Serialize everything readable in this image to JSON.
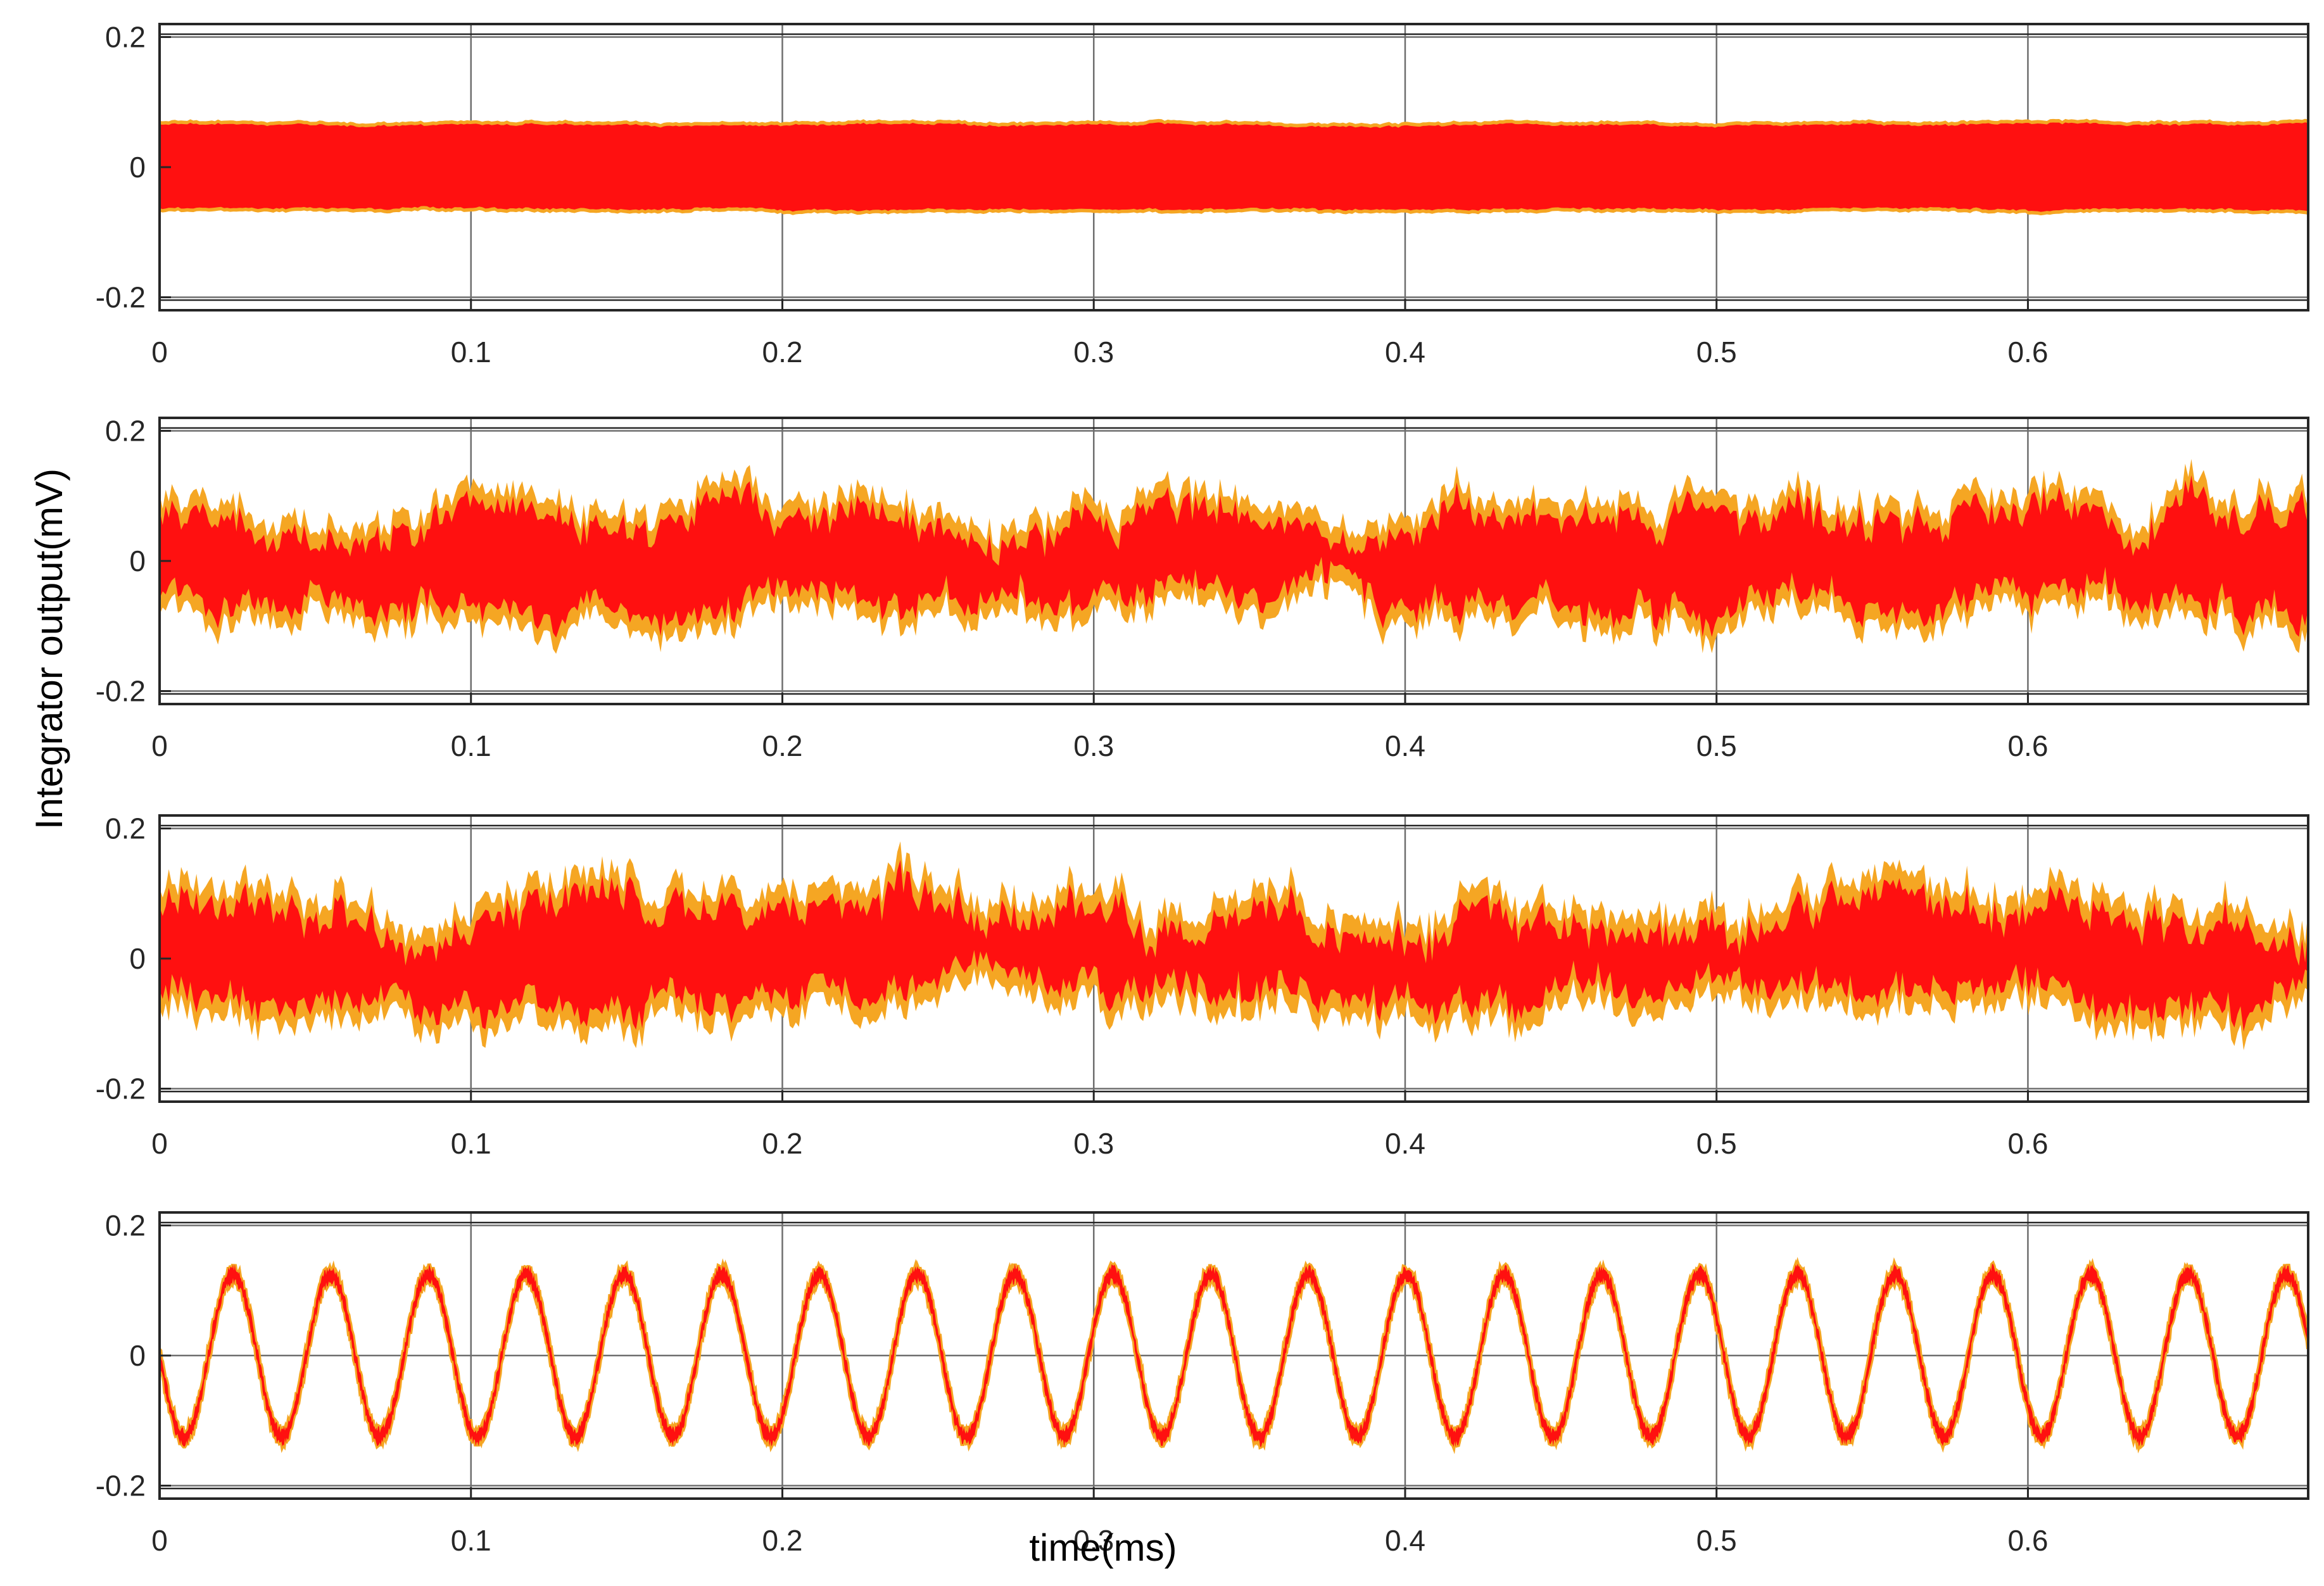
{
  "chart_data": {
    "type": "line",
    "xlabel": "time(ms)",
    "ylabel": "Integrator output(mV)",
    "xlim": [
      0,
      0.69
    ],
    "ylim": [
      -0.22,
      0.22
    ],
    "x_ticks": [
      "0",
      "0.1",
      "0.2",
      "0.3",
      "0.4",
      "0.5",
      "0.6"
    ],
    "y_ticks": [
      "0.2",
      "0",
      "-0.2"
    ],
    "grid": true,
    "colors": {
      "trace": "#ff1010",
      "trace_edge": "#f5a623"
    },
    "panels": [
      {
        "kind": "noise",
        "mean": 0,
        "amplitude": 0.07,
        "envelope_spread": 0.004
      },
      {
        "kind": "noise",
        "mean": 0,
        "amplitude": 0.09,
        "envelope_spread": 0.06
      },
      {
        "kind": "noise",
        "mean": 0,
        "amplitude": 0.09,
        "envelope_spread": 0.07
      },
      {
        "kind": "sine",
        "mean": 0,
        "amplitude": 0.125,
        "period": 0.0314,
        "start_phase": "negative",
        "noise": 0.02
      }
    ]
  }
}
